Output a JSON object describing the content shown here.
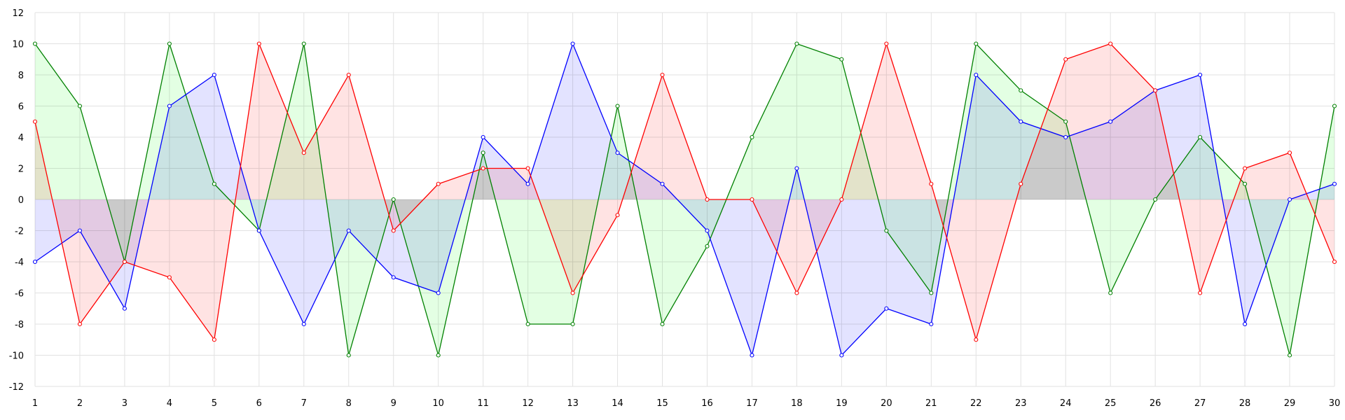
{
  "chart_data": {
    "type": "area",
    "title": "",
    "xlabel": "",
    "ylabel": "",
    "x": [
      1,
      2,
      3,
      4,
      5,
      6,
      7,
      8,
      9,
      10,
      11,
      12,
      13,
      14,
      15,
      16,
      17,
      18,
      19,
      20,
      21,
      22,
      23,
      24,
      25,
      26,
      27,
      28,
      29,
      30
    ],
    "xlim": [
      1,
      30
    ],
    "ylim": [
      -12,
      12
    ],
    "yticks": [
      -12,
      -10,
      -8,
      -6,
      -4,
      -2,
      0,
      2,
      4,
      6,
      8,
      10,
      12
    ],
    "grid": true,
    "legend": "none",
    "series": [
      {
        "color": "#008000",
        "fill": "#ccffcc",
        "values": [
          10,
          6,
          -4,
          10,
          1,
          -2,
          10,
          -10,
          0,
          -10,
          3,
          -8,
          -8,
          6,
          -8,
          -3,
          4,
          10,
          9,
          -2,
          -6,
          10,
          7,
          5,
          -6,
          0,
          4,
          1,
          -10,
          6
        ]
      },
      {
        "color": "#0000ff",
        "fill": "#ccccff",
        "values": [
          -4,
          -2,
          -7,
          6,
          8,
          -2,
          -8,
          -2,
          -5,
          -6,
          4,
          1,
          10,
          3,
          1,
          -2,
          -10,
          2,
          -10,
          -7,
          -8,
          8,
          5,
          4,
          5,
          7,
          8,
          -8,
          0,
          1
        ]
      },
      {
        "color": "#ff0000",
        "fill": "#ffcccc",
        "values": [
          5,
          -8,
          -4,
          -5,
          -9,
          10,
          3,
          8,
          -2,
          1,
          2,
          2,
          -6,
          -1,
          8,
          0,
          0,
          -6,
          0,
          10,
          1,
          -9,
          1,
          9,
          10,
          7,
          -6,
          2,
          3,
          -4
        ]
      }
    ]
  }
}
